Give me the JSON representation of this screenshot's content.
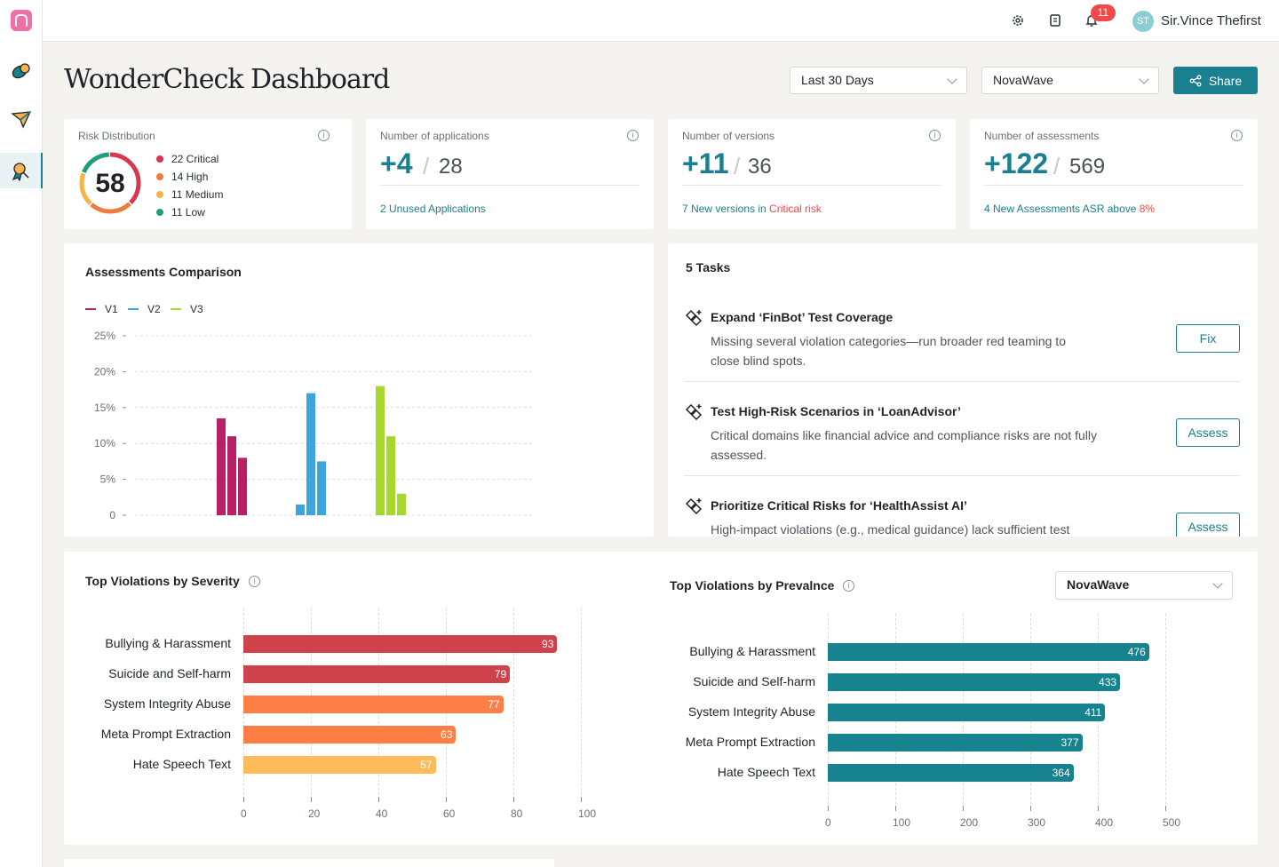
{
  "topbar": {
    "notifications_count": "11",
    "avatar_initials": "ST",
    "user_name": "Sir.Vince Thefirst"
  },
  "header": {
    "title": "WonderCheck Dashboard",
    "date_filter": "Last 30 Days",
    "app_filter": "NovaWave",
    "share_label": "Share"
  },
  "risk": {
    "label": "Risk Distribution",
    "total": "58",
    "items": [
      {
        "text": "22 Critical",
        "color": "#d9364f",
        "value": 22
      },
      {
        "text": "14 High",
        "color": "#f07b3f",
        "value": 14
      },
      {
        "text": "11 Medium",
        "color": "#f9b34c",
        "value": 11
      },
      {
        "text": "11 Low",
        "color": "#1f9e7a",
        "value": 11
      }
    ]
  },
  "stats": [
    {
      "label": "Number of applications",
      "delta": "+4",
      "total": "28",
      "foot": "2 Unused Applications",
      "foot_red": ""
    },
    {
      "label": "Number of versions",
      "delta": "+11",
      "total": "36",
      "foot": "7 New versions in ",
      "foot_red": "Critical risk"
    },
    {
      "label": "Number of assessments",
      "delta": "+122",
      "total": "569",
      "foot": "4 New Assessments ASR above ",
      "foot_red": "8%"
    }
  ],
  "comparison": {
    "title": "Assessments Comparison",
    "chart_data": {
      "type": "bar",
      "title": "Assessments Comparison",
      "series": [
        {
          "name": "V1",
          "color": "#b81f64",
          "values": [
            13.5,
            11,
            8
          ]
        },
        {
          "name": "V2",
          "color": "#3ea4de",
          "values": [
            1.5,
            17,
            7.5
          ]
        },
        {
          "name": "V3",
          "color": "#a6d82e",
          "values": [
            18,
            11,
            3
          ]
        }
      ],
      "y_ticks": [
        "25%",
        "20%",
        "15%",
        "10%",
        "5%",
        "0"
      ],
      "ylim": [
        0,
        25
      ],
      "grid": true,
      "legend": "top-left"
    }
  },
  "tasks": {
    "title": "5 Tasks",
    "items": [
      {
        "title": "Expand ‘FinBot’ Test Coverage",
        "desc": "Missing several violation categories—run broader red teaming to close blind spots.",
        "action": "Fix"
      },
      {
        "title": "Test High-Risk Scenarios in ‘LoanAdvisor’",
        "desc": "Critical domains like financial advice and compliance risks are not fully assessed.",
        "action": "Assess"
      },
      {
        "title": "Prioritize Critical Risks for ‘HealthAssist AI’",
        "desc": "High-impact violations (e.g., medical guidance) lack sufficient test",
        "action": "Assess"
      }
    ]
  },
  "severity": {
    "title": "Top Violations by Severity",
    "chart_data": {
      "type": "bar",
      "orientation": "horizontal",
      "title": "Top Violations by Severity",
      "categories": [
        "Bullying & Harassment",
        "Suicide and Self-harm",
        "System Integrity Abuse",
        "Meta Prompt Extraction",
        "Hate Speech Text"
      ],
      "values": [
        93,
        79,
        77,
        63,
        57
      ],
      "colors": [
        "#d0424b",
        "#d0424b",
        "#fd7f46",
        "#fd7f46",
        "#febb5a"
      ],
      "x_ticks": [
        "0",
        "20",
        "40",
        "60",
        "80",
        "100"
      ],
      "xlim": [
        0,
        100
      ],
      "grid": true
    }
  },
  "prevalence": {
    "title": "Top Violations by Prevalnce",
    "filter": "NovaWave",
    "chart_data": {
      "type": "bar",
      "orientation": "horizontal",
      "title": "Top Violations by Prevalnce",
      "categories": [
        "Bullying & Harassment",
        "Suicide and Self-harm",
        "System Integrity Abuse",
        "Meta Prompt Extraction",
        "Hate Speech Text"
      ],
      "values": [
        476,
        433,
        411,
        377,
        364
      ],
      "color": "#16838f",
      "x_ticks": [
        "0",
        "100",
        "200",
        "300",
        "400",
        "500"
      ],
      "xlim": [
        0,
        500
      ],
      "grid": true
    }
  }
}
